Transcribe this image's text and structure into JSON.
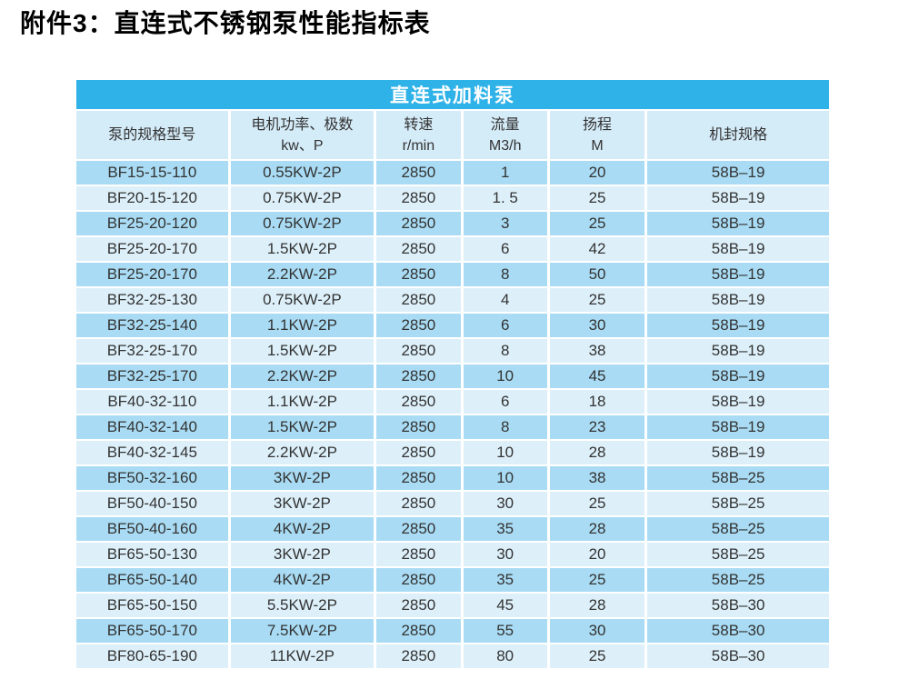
{
  "page_title": "附件3：直连式不锈钢泵性能指标表",
  "table": {
    "banner": "直连式加料泵",
    "columns": [
      {
        "lines": [
          "泵的规格型号"
        ]
      },
      {
        "lines": [
          "电机功率、极数",
          "kw、P"
        ]
      },
      {
        "lines": [
          "转速",
          "r/min"
        ]
      },
      {
        "lines": [
          "流量",
          "M3/h"
        ]
      },
      {
        "lines": [
          "扬程",
          "M"
        ]
      },
      {
        "lines": [
          "机封规格"
        ]
      }
    ],
    "rows": [
      [
        "BF15-15-110",
        "0.55KW-2P",
        "2850",
        "1",
        "20",
        "58B–19"
      ],
      [
        "BF20-15-120",
        "0.75KW-2P",
        "2850",
        "1. 5",
        "25",
        "58B–19"
      ],
      [
        "BF25-20-120",
        "0.75KW-2P",
        "2850",
        "3",
        "25",
        "58B–19"
      ],
      [
        "BF25-20-170",
        "1.5KW-2P",
        "2850",
        "6",
        "42",
        "58B–19"
      ],
      [
        "BF25-20-170",
        "2.2KW-2P",
        "2850",
        "8",
        "50",
        "58B–19"
      ],
      [
        "BF32-25-130",
        "0.75KW-2P",
        "2850",
        "4",
        "25",
        "58B–19"
      ],
      [
        "BF32-25-140",
        "1.1KW-2P",
        "2850",
        "6",
        "30",
        "58B–19"
      ],
      [
        "BF32-25-170",
        "1.5KW-2P",
        "2850",
        "8",
        "38",
        "58B–19"
      ],
      [
        "BF32-25-170",
        "2.2KW-2P",
        "2850",
        "10",
        "45",
        "58B–19"
      ],
      [
        "BF40-32-110",
        "1.1KW-2P",
        "2850",
        "6",
        "18",
        "58B–19"
      ],
      [
        "BF40-32-140",
        "1.5KW-2P",
        "2850",
        "8",
        "23",
        "58B–19"
      ],
      [
        "BF40-32-145",
        "2.2KW-2P",
        "2850",
        "10",
        "28",
        "58B–19"
      ],
      [
        "BF50-32-160",
        "3KW-2P",
        "2850",
        "10",
        "38",
        "58B–25"
      ],
      [
        "BF50-40-150",
        "3KW-2P",
        "2850",
        "30",
        "25",
        "58B–25"
      ],
      [
        "BF50-40-160",
        "4KW-2P",
        "2850",
        "35",
        "28",
        "58B–25"
      ],
      [
        "BF65-50-130",
        "3KW-2P",
        "2850",
        "30",
        "20",
        "58B–25"
      ],
      [
        "BF65-50-140",
        "4KW-2P",
        "2850",
        "35",
        "25",
        "58B–25"
      ],
      [
        "BF65-50-150",
        "5.5KW-2P",
        "2850",
        "45",
        "28",
        "58B–30"
      ],
      [
        "BF65-50-170",
        "7.5KW-2P",
        "2850",
        "55",
        "30",
        "58B–30"
      ],
      [
        "BF80-65-190",
        "11KW-2P",
        "2850",
        "80",
        "25",
        "58B–30"
      ]
    ],
    "colors": {
      "banner_bg": "#2eb2e8",
      "banner_text": "#ffffff",
      "header_row_bg": "#d4ebf8",
      "row_dark": "#a9dcf4",
      "row_light": "#ddf0fa",
      "cell_text": "#333333",
      "title_color": "#000000"
    }
  }
}
